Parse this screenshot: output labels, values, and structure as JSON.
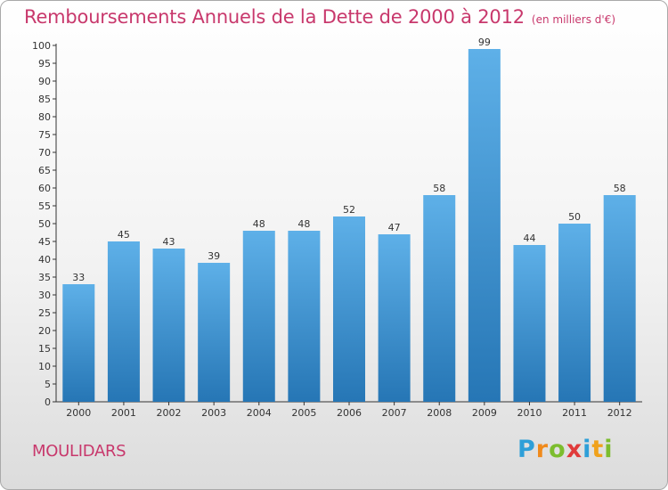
{
  "header": {
    "title": "Remboursements Annuels de la Dette de 2000 à 2012",
    "unit": "(en milliers d'€)"
  },
  "footer": {
    "commune": "MOULIDARS",
    "logo": {
      "letters": [
        "P",
        "r",
        "o",
        "x",
        "i",
        "t",
        "i"
      ],
      "colors": [
        "#2e9fd8",
        "#f08a1c",
        "#7cbd2e",
        "#e03a3a",
        "#2e9fd8",
        "#f0a21c",
        "#7cbd2e"
      ]
    }
  },
  "colors": {
    "bar_light": "#5eb0e8",
    "bar_dark": "#2676b5",
    "title": "#c8386c"
  },
  "chart_data": {
    "type": "bar",
    "title": "Remboursements Annuels de la Dette de 2000 à 2012",
    "subtitle": "(en milliers d'€)",
    "categories": [
      "2000",
      "2001",
      "2002",
      "2003",
      "2004",
      "2005",
      "2006",
      "2007",
      "2008",
      "2009",
      "2010",
      "2011",
      "2012"
    ],
    "values": [
      33,
      45,
      43,
      39,
      48,
      48,
      52,
      47,
      58,
      99,
      44,
      50,
      58
    ],
    "ylim": [
      0,
      100
    ],
    "yticks": [
      0,
      5,
      10,
      15,
      20,
      25,
      30,
      35,
      40,
      45,
      50,
      55,
      60,
      65,
      70,
      75,
      80,
      85,
      90,
      95,
      100
    ],
    "grid": false,
    "data_labels": true
  }
}
